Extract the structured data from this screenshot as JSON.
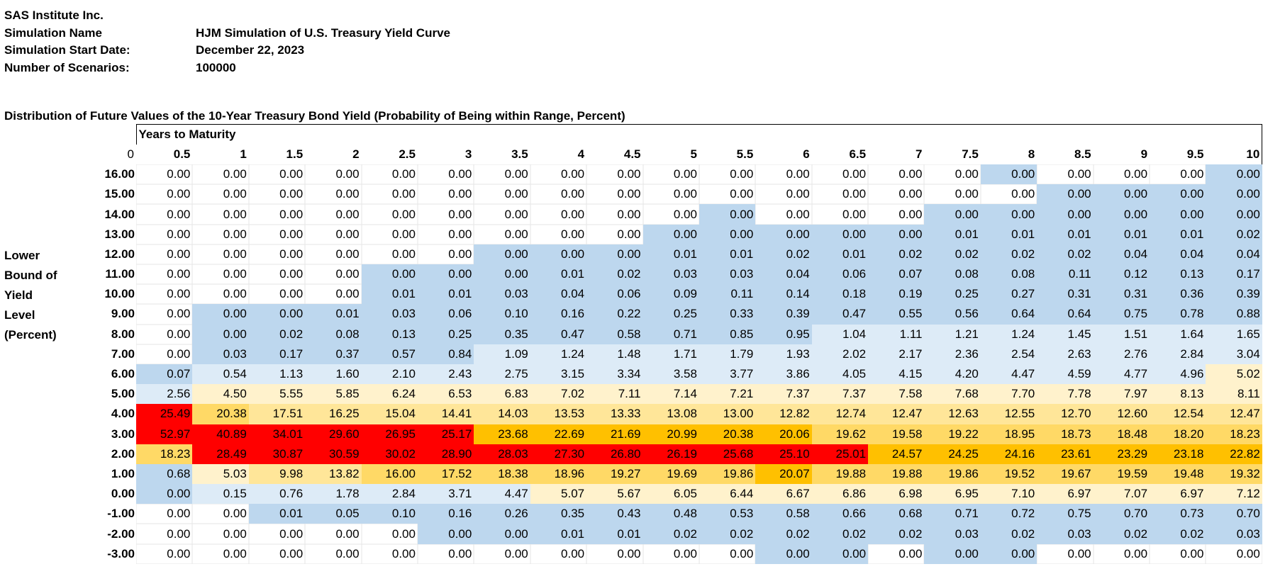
{
  "header": {
    "company": "SAS Institute Inc.",
    "fields": [
      {
        "label": "Simulation Name",
        "value": "HJM Simulation of U.S. Treasury Yield Curve"
      },
      {
        "label": "Simulation Start Date:",
        "value": "December 22, 2023"
      },
      {
        "label": "Number of Scenarios:",
        "value": "100000"
      }
    ]
  },
  "table_title": "Distribution of Future Values of the 10-Year Treasury Bond Yield (Probability of Being within Range, Percent)",
  "column_group_label": "Years to Maturity",
  "corner_label": "0",
  "row_axis_title": [
    "Lower",
    "Bound of",
    "Yield",
    "Level",
    "(Percent)"
  ],
  "colors": {
    "blue": "#bdd7ee",
    "light_blue": "#ddebf7",
    "light_yellow": "#fff2cc",
    "yellow": "#ffe699",
    "gold": "#ffd966",
    "orange": "#ffc000",
    "red": "#ff0000",
    "white": "#ffffff"
  },
  "chart_data": {
    "type": "heatmap",
    "title": "Distribution of Future Values of the 10-Year Treasury Bond Yield (Probability of Being within Range, Percent)",
    "xlabel": "Years to Maturity",
    "ylabel": "Lower Bound of Yield Level (Percent)",
    "columns": [
      "0.5",
      "1",
      "1.5",
      "2",
      "2.5",
      "3",
      "3.5",
      "4",
      "4.5",
      "5",
      "5.5",
      "6",
      "6.5",
      "7",
      "7.5",
      "8",
      "8.5",
      "9",
      "9.5",
      "10"
    ],
    "rows": [
      "16.00",
      "15.00",
      "14.00",
      "13.00",
      "12.00",
      "11.00",
      "10.00",
      "9.00",
      "8.00",
      "7.00",
      "6.00",
      "5.00",
      "4.00",
      "3.00",
      "2.00",
      "1.00",
      "0.00",
      "-1.00",
      "-2.00",
      "-3.00"
    ],
    "values": [
      [
        "0.00",
        "0.00",
        "0.00",
        "0.00",
        "0.00",
        "0.00",
        "0.00",
        "0.00",
        "0.00",
        "0.00",
        "0.00",
        "0.00",
        "0.00",
        "0.00",
        "0.00",
        "0.00",
        "0.00",
        "0.00",
        "0.00",
        "0.00"
      ],
      [
        "0.00",
        "0.00",
        "0.00",
        "0.00",
        "0.00",
        "0.00",
        "0.00",
        "0.00",
        "0.00",
        "0.00",
        "0.00",
        "0.00",
        "0.00",
        "0.00",
        "0.00",
        "0.00",
        "0.00",
        "0.00",
        "0.00",
        "0.00"
      ],
      [
        "0.00",
        "0.00",
        "0.00",
        "0.00",
        "0.00",
        "0.00",
        "0.00",
        "0.00",
        "0.00",
        "0.00",
        "0.00",
        "0.00",
        "0.00",
        "0.00",
        "0.00",
        "0.00",
        "0.00",
        "0.00",
        "0.00",
        "0.00"
      ],
      [
        "0.00",
        "0.00",
        "0.00",
        "0.00",
        "0.00",
        "0.00",
        "0.00",
        "0.00",
        "0.00",
        "0.00",
        "0.00",
        "0.00",
        "0.00",
        "0.00",
        "0.01",
        "0.01",
        "0.01",
        "0.01",
        "0.01",
        "0.02"
      ],
      [
        "0.00",
        "0.00",
        "0.00",
        "0.00",
        "0.00",
        "0.00",
        "0.00",
        "0.00",
        "0.00",
        "0.01",
        "0.01",
        "0.02",
        "0.01",
        "0.02",
        "0.02",
        "0.02",
        "0.02",
        "0.04",
        "0.04",
        "0.04"
      ],
      [
        "0.00",
        "0.00",
        "0.00",
        "0.00",
        "0.00",
        "0.00",
        "0.00",
        "0.01",
        "0.02",
        "0.03",
        "0.03",
        "0.04",
        "0.06",
        "0.07",
        "0.08",
        "0.08",
        "0.11",
        "0.12",
        "0.13",
        "0.17"
      ],
      [
        "0.00",
        "0.00",
        "0.00",
        "0.00",
        "0.01",
        "0.01",
        "0.03",
        "0.04",
        "0.06",
        "0.09",
        "0.11",
        "0.14",
        "0.18",
        "0.19",
        "0.25",
        "0.27",
        "0.31",
        "0.31",
        "0.36",
        "0.39"
      ],
      [
        "0.00",
        "0.00",
        "0.00",
        "0.01",
        "0.03",
        "0.06",
        "0.10",
        "0.16",
        "0.22",
        "0.25",
        "0.33",
        "0.39",
        "0.47",
        "0.55",
        "0.56",
        "0.64",
        "0.64",
        "0.75",
        "0.78",
        "0.88"
      ],
      [
        "0.00",
        "0.00",
        "0.02",
        "0.08",
        "0.13",
        "0.25",
        "0.35",
        "0.47",
        "0.58",
        "0.71",
        "0.85",
        "0.95",
        "1.04",
        "1.11",
        "1.21",
        "1.24",
        "1.45",
        "1.51",
        "1.64",
        "1.65"
      ],
      [
        "0.00",
        "0.03",
        "0.17",
        "0.37",
        "0.57",
        "0.84",
        "1.09",
        "1.24",
        "1.48",
        "1.71",
        "1.79",
        "1.93",
        "2.02",
        "2.17",
        "2.36",
        "2.54",
        "2.63",
        "2.76",
        "2.84",
        "3.04"
      ],
      [
        "0.07",
        "0.54",
        "1.13",
        "1.60",
        "2.10",
        "2.43",
        "2.75",
        "3.15",
        "3.34",
        "3.58",
        "3.77",
        "3.86",
        "4.05",
        "4.15",
        "4.20",
        "4.47",
        "4.59",
        "4.77",
        "4.96",
        "5.02"
      ],
      [
        "2.56",
        "4.50",
        "5.55",
        "5.85",
        "6.24",
        "6.53",
        "6.83",
        "7.02",
        "7.11",
        "7.14",
        "7.21",
        "7.37",
        "7.37",
        "7.58",
        "7.68",
        "7.70",
        "7.78",
        "7.97",
        "8.13",
        "8.11"
      ],
      [
        "25.49",
        "20.38",
        "17.51",
        "16.25",
        "15.04",
        "14.41",
        "14.03",
        "13.53",
        "13.33",
        "13.08",
        "13.00",
        "12.82",
        "12.74",
        "12.47",
        "12.63",
        "12.55",
        "12.70",
        "12.60",
        "12.54",
        "12.47"
      ],
      [
        "52.97",
        "40.89",
        "34.01",
        "29.60",
        "26.95",
        "25.17",
        "23.68",
        "22.69",
        "21.69",
        "20.99",
        "20.38",
        "20.06",
        "19.62",
        "19.58",
        "19.22",
        "18.95",
        "18.73",
        "18.48",
        "18.20",
        "18.23"
      ],
      [
        "18.23",
        "28.49",
        "30.87",
        "30.59",
        "30.02",
        "28.90",
        "28.03",
        "27.30",
        "26.80",
        "26.19",
        "25.68",
        "25.10",
        "25.01",
        "24.57",
        "24.25",
        "24.16",
        "23.61",
        "23.29",
        "23.18",
        "22.82"
      ],
      [
        "0.68",
        "5.03",
        "9.98",
        "13.82",
        "16.00",
        "17.52",
        "18.38",
        "18.96",
        "19.27",
        "19.69",
        "19.86",
        "20.07",
        "19.88",
        "19.88",
        "19.86",
        "19.52",
        "19.67",
        "19.59",
        "19.48",
        "19.32"
      ],
      [
        "0.00",
        "0.15",
        "0.76",
        "1.78",
        "2.84",
        "3.71",
        "4.47",
        "5.07",
        "5.67",
        "6.05",
        "6.44",
        "6.67",
        "6.86",
        "6.98",
        "6.95",
        "7.10",
        "6.97",
        "7.07",
        "6.97",
        "7.12"
      ],
      [
        "0.00",
        "0.00",
        "0.01",
        "0.05",
        "0.10",
        "0.16",
        "0.26",
        "0.35",
        "0.43",
        "0.48",
        "0.53",
        "0.58",
        "0.66",
        "0.68",
        "0.71",
        "0.72",
        "0.75",
        "0.70",
        "0.73",
        "0.70"
      ],
      [
        "0.00",
        "0.00",
        "0.00",
        "0.00",
        "0.00",
        "0.00",
        "0.00",
        "0.01",
        "0.01",
        "0.02",
        "0.02",
        "0.02",
        "0.02",
        "0.02",
        "0.03",
        "0.02",
        "0.03",
        "0.02",
        "0.02",
        "0.03"
      ],
      [
        "0.00",
        "0.00",
        "0.00",
        "0.00",
        "0.00",
        "0.00",
        "0.00",
        "0.00",
        "0.00",
        "0.00",
        "0.00",
        "0.00",
        "0.00",
        "0.00",
        "0.00",
        "0.00",
        "0.00",
        "0.00",
        "0.00",
        "0.00"
      ]
    ],
    "cell_colors": [
      [
        "white",
        "white",
        "white",
        "white",
        "white",
        "white",
        "white",
        "white",
        "white",
        "white",
        "white",
        "white",
        "white",
        "white",
        "white",
        "blue",
        "white",
        "white",
        "white",
        "blue"
      ],
      [
        "white",
        "white",
        "white",
        "white",
        "white",
        "white",
        "white",
        "white",
        "white",
        "white",
        "white",
        "white",
        "white",
        "white",
        "white",
        "white",
        "blue",
        "blue",
        "blue",
        "blue"
      ],
      [
        "white",
        "white",
        "white",
        "white",
        "white",
        "white",
        "white",
        "white",
        "white",
        "white",
        "blue",
        "white",
        "white",
        "white",
        "blue",
        "blue",
        "blue",
        "blue",
        "blue",
        "blue"
      ],
      [
        "white",
        "white",
        "white",
        "white",
        "white",
        "white",
        "white",
        "white",
        "white",
        "blue",
        "blue",
        "blue",
        "blue",
        "blue",
        "blue",
        "blue",
        "blue",
        "blue",
        "blue",
        "blue"
      ],
      [
        "white",
        "white",
        "white",
        "white",
        "white",
        "white",
        "blue",
        "blue",
        "blue",
        "blue",
        "blue",
        "blue",
        "blue",
        "blue",
        "blue",
        "blue",
        "blue",
        "blue",
        "blue",
        "blue"
      ],
      [
        "white",
        "white",
        "white",
        "white",
        "blue",
        "blue",
        "blue",
        "blue",
        "blue",
        "blue",
        "blue",
        "blue",
        "blue",
        "blue",
        "blue",
        "blue",
        "blue",
        "blue",
        "blue",
        "blue"
      ],
      [
        "white",
        "white",
        "white",
        "white",
        "blue",
        "blue",
        "blue",
        "blue",
        "blue",
        "blue",
        "blue",
        "blue",
        "blue",
        "blue",
        "blue",
        "blue",
        "blue",
        "blue",
        "blue",
        "blue"
      ],
      [
        "white",
        "blue",
        "blue",
        "blue",
        "blue",
        "blue",
        "blue",
        "blue",
        "blue",
        "blue",
        "blue",
        "blue",
        "blue",
        "blue",
        "blue",
        "blue",
        "blue",
        "blue",
        "blue",
        "blue"
      ],
      [
        "white",
        "blue",
        "blue",
        "blue",
        "blue",
        "blue",
        "blue",
        "blue",
        "blue",
        "blue",
        "blue",
        "blue",
        "light_blue",
        "light_blue",
        "light_blue",
        "light_blue",
        "light_blue",
        "light_blue",
        "light_blue",
        "light_blue"
      ],
      [
        "white",
        "blue",
        "blue",
        "blue",
        "blue",
        "blue",
        "light_blue",
        "light_blue",
        "light_blue",
        "light_blue",
        "light_blue",
        "light_blue",
        "light_blue",
        "light_blue",
        "light_blue",
        "light_blue",
        "light_blue",
        "light_blue",
        "light_blue",
        "light_blue"
      ],
      [
        "blue",
        "light_blue",
        "light_blue",
        "light_blue",
        "light_blue",
        "light_blue",
        "light_blue",
        "light_blue",
        "light_blue",
        "light_blue",
        "light_blue",
        "light_blue",
        "light_blue",
        "light_blue",
        "light_blue",
        "light_blue",
        "light_blue",
        "light_blue",
        "light_blue",
        "light_yellow"
      ],
      [
        "light_blue",
        "light_yellow",
        "light_yellow",
        "light_yellow",
        "light_yellow",
        "light_yellow",
        "light_yellow",
        "light_yellow",
        "light_yellow",
        "light_yellow",
        "light_yellow",
        "light_yellow",
        "light_yellow",
        "light_yellow",
        "light_yellow",
        "light_yellow",
        "light_yellow",
        "light_yellow",
        "light_yellow",
        "light_yellow"
      ],
      [
        "red",
        "gold",
        "yellow",
        "yellow",
        "yellow",
        "yellow",
        "yellow",
        "yellow",
        "yellow",
        "yellow",
        "yellow",
        "yellow",
        "yellow",
        "yellow",
        "yellow",
        "yellow",
        "yellow",
        "yellow",
        "yellow",
        "yellow"
      ],
      [
        "red",
        "red",
        "red",
        "red",
        "red",
        "red",
        "orange",
        "orange",
        "orange",
        "orange",
        "orange",
        "orange",
        "gold",
        "gold",
        "gold",
        "gold",
        "gold",
        "gold",
        "gold",
        "gold"
      ],
      [
        "gold",
        "red",
        "red",
        "red",
        "red",
        "red",
        "red",
        "red",
        "red",
        "red",
        "red",
        "red",
        "red",
        "orange",
        "orange",
        "orange",
        "orange",
        "orange",
        "orange",
        "orange"
      ],
      [
        "blue",
        "light_yellow",
        "yellow",
        "yellow",
        "gold",
        "gold",
        "gold",
        "gold",
        "gold",
        "gold",
        "gold",
        "orange",
        "gold",
        "gold",
        "gold",
        "gold",
        "gold",
        "gold",
        "gold",
        "gold"
      ],
      [
        "blue",
        "light_blue",
        "light_blue",
        "light_blue",
        "light_blue",
        "light_blue",
        "light_blue",
        "light_yellow",
        "light_yellow",
        "light_yellow",
        "light_yellow",
        "light_yellow",
        "light_yellow",
        "light_yellow",
        "light_yellow",
        "light_yellow",
        "light_yellow",
        "light_yellow",
        "light_yellow",
        "light_yellow"
      ],
      [
        "white",
        "white",
        "blue",
        "blue",
        "blue",
        "blue",
        "blue",
        "blue",
        "blue",
        "blue",
        "blue",
        "blue",
        "blue",
        "blue",
        "blue",
        "blue",
        "blue",
        "blue",
        "blue",
        "blue"
      ],
      [
        "white",
        "white",
        "white",
        "white",
        "white",
        "blue",
        "blue",
        "blue",
        "blue",
        "blue",
        "blue",
        "blue",
        "blue",
        "blue",
        "blue",
        "blue",
        "blue",
        "blue",
        "blue",
        "blue"
      ],
      [
        "white",
        "white",
        "white",
        "white",
        "white",
        "white",
        "white",
        "white",
        "white",
        "white",
        "white",
        "blue",
        "blue",
        "white",
        "blue",
        "blue",
        "white",
        "white",
        "white",
        "white"
      ]
    ]
  }
}
